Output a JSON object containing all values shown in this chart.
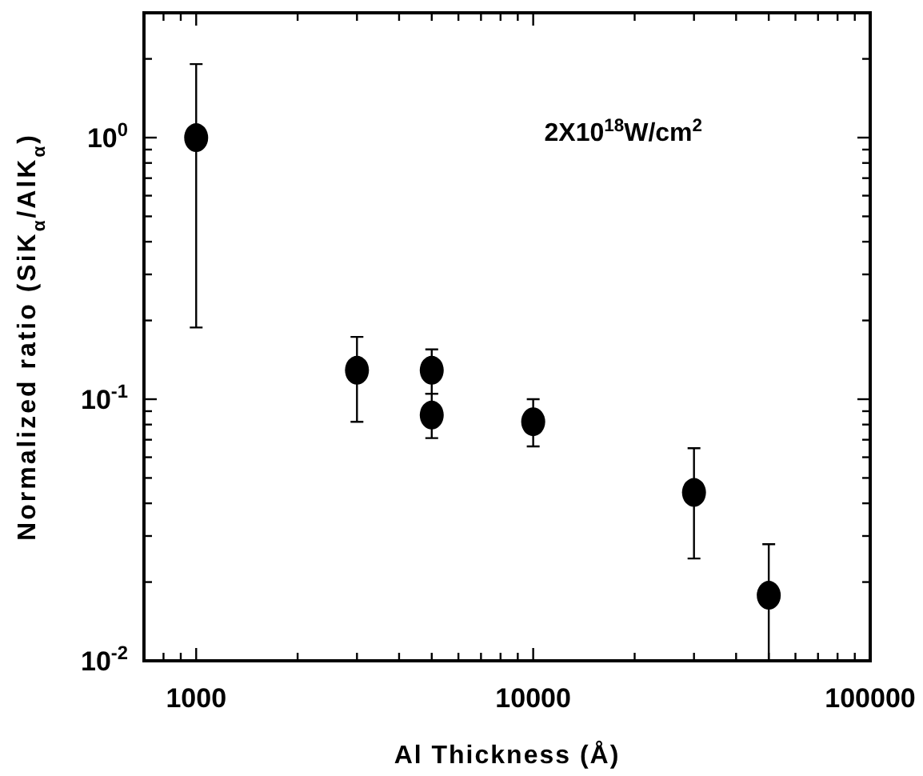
{
  "chart_data": {
    "type": "scatter",
    "xlabel": "Al Thickness (Å)",
    "ylabel": "Normalized ratio (SiK$_{α}$/AlK$_{α}$)",
    "annotations": [
      "2X10$^{18}$W/cm$^{2}$"
    ],
    "x": [
      1000,
      3000,
      5000,
      5000,
      10000,
      30000,
      50000
    ],
    "values": [
      1,
      0.129,
      0.129,
      0.087,
      0.082,
      0.044,
      0.0178
    ],
    "errors": [
      [
        0.188,
        1.91
      ],
      [
        0.082,
        0.173
      ],
      [
        0.105,
        0.155
      ],
      [
        0.071,
        0.105
      ],
      [
        0.066,
        0.1
      ],
      [
        0.0246,
        0.065
      ],
      [
        0.01,
        0.0279
      ]
    ],
    "color": "#000000",
    "marker": "circle",
    "log": "xy",
    "grid": false,
    "xlim": [
      700,
      100000
    ],
    "xticks": [
      {
        "value": 800,
        "label": null
      },
      {
        "value": 900,
        "label": null
      },
      1000,
      {
        "value": 2000,
        "label": null
      },
      {
        "value": 3000,
        "label": null
      },
      {
        "value": 4000,
        "label": null
      },
      {
        "value": 5000,
        "label": null
      },
      {
        "value": 6000,
        "label": null
      },
      {
        "value": 7000,
        "label": null
      },
      {
        "value": 8000,
        "label": null
      },
      {
        "value": 9000,
        "label": null
      },
      10000,
      {
        "value": 20000,
        "label": null
      },
      {
        "value": 30000,
        "label": null
      },
      {
        "value": 40000,
        "label": null
      },
      {
        "value": 50000,
        "label": null
      },
      {
        "value": 60000,
        "label": null
      },
      {
        "value": 70000,
        "label": null
      },
      {
        "value": 80000,
        "label": null
      },
      {
        "value": 90000,
        "label": null
      },
      100000
    ],
    "ylim": [
      0.01,
      3
    ],
    "yticks": [
      {
        "value": 0.01,
        "label": "10$^{-2}$"
      },
      {
        "value": 0.02,
        "label": null
      },
      {
        "value": 0.03,
        "label": null
      },
      {
        "value": 0.04,
        "label": null
      },
      {
        "value": 0.05,
        "label": null
      },
      {
        "value": 0.06,
        "label": null
      },
      {
        "value": 0.07,
        "label": null
      },
      {
        "value": 0.08,
        "label": null
      },
      {
        "value": 0.09,
        "label": null
      },
      {
        "value": 0.1,
        "label": "10$^{-1}$"
      },
      {
        "value": 0.2,
        "label": null
      },
      {
        "value": 0.3,
        "label": null
      },
      {
        "value": 0.4,
        "label": null
      },
      {
        "value": 0.5,
        "label": null
      },
      {
        "value": 0.6,
        "label": null
      },
      {
        "value": 0.7,
        "label": null
      },
      {
        "value": 0.8,
        "label": null
      },
      {
        "value": 0.9,
        "label": null
      },
      {
        "value": 1,
        "label": "10$^{0}$"
      },
      {
        "value": 2,
        "label": null
      },
      {
        "value": 3,
        "label": null
      }
    ]
  }
}
